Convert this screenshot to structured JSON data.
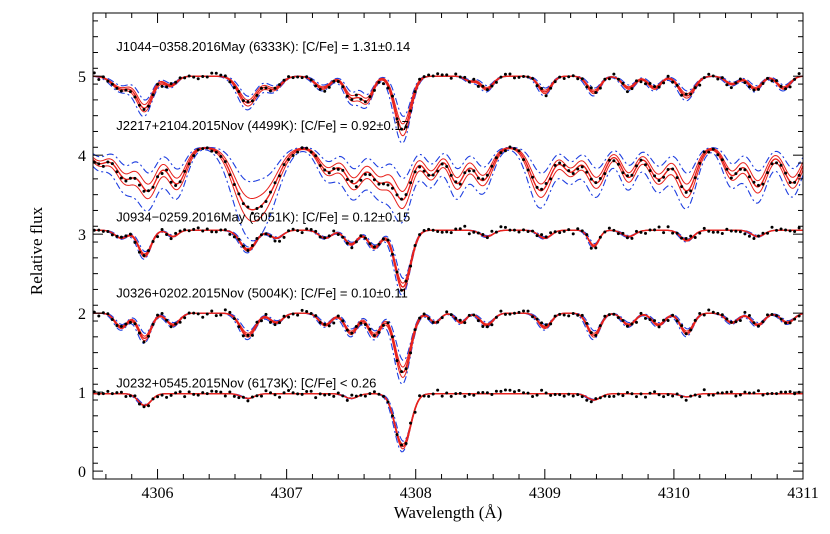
{
  "chart_data": {
    "type": "line",
    "xlabel": "Wavelength (Å)",
    "ylabel": "Relative flux",
    "xlim": [
      4305.5,
      4311.0
    ],
    "ylim": [
      -0.1,
      5.8
    ],
    "xticks": [
      4306,
      4307,
      4308,
      4309,
      4310,
      4311
    ],
    "xtick_labels": [
      "4306",
      "4307",
      "4308",
      "4309",
      "4310",
      "4311"
    ],
    "yticks": [
      0,
      1,
      2,
      3,
      4,
      5
    ],
    "ytick_labels": [
      "0",
      "1",
      "2",
      "3",
      "4",
      "5"
    ],
    "grid": false,
    "annotations": [
      {
        "text": "J1044−0358.2016May (6333K): [C/Fe] = 1.31±0.14",
        "x": 4305.68,
        "y": 5.32
      },
      {
        "text": "J2217+2104.2015Nov (4499K): [C/Fe] = 0.92±0.17",
        "x": 4305.68,
        "y": 4.32
      },
      {
        "text": "J0934−0259.2016May (6051K): [C/Fe] = 0.12±0.15",
        "x": 4305.68,
        "y": 3.16
      },
      {
        "text": "J0326+0202.2015Nov (5004K): [C/Fe] = 0.10±0.11",
        "x": 4305.68,
        "y": 2.2
      },
      {
        "text": "J0232+0545.2015Nov (6173K): [C/Fe] < 0.26",
        "x": 4305.68,
        "y": 1.06
      }
    ],
    "line_styles": {
      "observed": {
        "color": "#000000",
        "style": "dots"
      },
      "best_fit": {
        "color": "#e8221c",
        "style": "solid"
      },
      "fit_bounds": {
        "color": "#1f3fe0",
        "style": "dash-dot"
      }
    },
    "panels": [
      {
        "star": "J1044−0358.2016May",
        "offset": 5.0,
        "features": [
          {
            "x": 4305.72,
            "depth": 0.16,
            "w": 0.07
          },
          {
            "x": 4305.9,
            "depth": 0.4,
            "w": 0.06
          },
          {
            "x": 4306.1,
            "depth": 0.12,
            "w": 0.05
          },
          {
            "x": 4306.7,
            "depth": 0.34,
            "w": 0.07
          },
          {
            "x": 4306.9,
            "depth": 0.16,
            "w": 0.06
          },
          {
            "x": 4307.28,
            "depth": 0.15,
            "w": 0.06
          },
          {
            "x": 4307.5,
            "depth": 0.26,
            "w": 0.05
          },
          {
            "x": 4307.62,
            "depth": 0.3,
            "w": 0.05
          },
          {
            "x": 4307.9,
            "depth": 0.68,
            "w": 0.06
          },
          {
            "x": 4308.42,
            "depth": 0.06,
            "w": 0.04
          },
          {
            "x": 4308.55,
            "depth": 0.16,
            "w": 0.05
          },
          {
            "x": 4309.0,
            "depth": 0.2,
            "w": 0.05
          },
          {
            "x": 4309.38,
            "depth": 0.2,
            "w": 0.05
          },
          {
            "x": 4309.65,
            "depth": 0.15,
            "w": 0.05
          },
          {
            "x": 4309.85,
            "depth": 0.15,
            "w": 0.05
          },
          {
            "x": 4310.1,
            "depth": 0.25,
            "w": 0.06
          },
          {
            "x": 4310.45,
            "depth": 0.1,
            "w": 0.05
          },
          {
            "x": 4310.63,
            "depth": 0.16,
            "w": 0.05
          },
          {
            "x": 4310.85,
            "depth": 0.15,
            "w": 0.05
          }
        ],
        "bands": [
          0.05,
          0.1
        ]
      },
      {
        "star": "J2217+2104.2015Nov",
        "offset": 4.1,
        "features": [
          {
            "x": 4305.55,
            "depth": 0.2,
            "w": 0.07
          },
          {
            "x": 4305.75,
            "depth": 0.38,
            "w": 0.07
          },
          {
            "x": 4305.93,
            "depth": 0.54,
            "w": 0.07
          },
          {
            "x": 4306.15,
            "depth": 0.46,
            "w": 0.07
          },
          {
            "x": 4306.68,
            "depth": 0.62,
            "w": 0.1
          },
          {
            "x": 4306.85,
            "depth": 0.5,
            "w": 0.1
          },
          {
            "x": 4307.32,
            "depth": 0.3,
            "w": 0.07
          },
          {
            "x": 4307.52,
            "depth": 0.45,
            "w": 0.07
          },
          {
            "x": 4307.72,
            "depth": 0.42,
            "w": 0.07
          },
          {
            "x": 4307.9,
            "depth": 0.65,
            "w": 0.07
          },
          {
            "x": 4308.12,
            "depth": 0.35,
            "w": 0.06
          },
          {
            "x": 4308.32,
            "depth": 0.45,
            "w": 0.06
          },
          {
            "x": 4308.52,
            "depth": 0.42,
            "w": 0.07
          },
          {
            "x": 4308.97,
            "depth": 0.55,
            "w": 0.08
          },
          {
            "x": 4309.2,
            "depth": 0.3,
            "w": 0.06
          },
          {
            "x": 4309.4,
            "depth": 0.45,
            "w": 0.07
          },
          {
            "x": 4309.65,
            "depth": 0.38,
            "w": 0.06
          },
          {
            "x": 4309.88,
            "depth": 0.4,
            "w": 0.07
          },
          {
            "x": 4310.1,
            "depth": 0.55,
            "w": 0.07
          },
          {
            "x": 4310.45,
            "depth": 0.35,
            "w": 0.06
          },
          {
            "x": 4310.65,
            "depth": 0.5,
            "w": 0.07
          },
          {
            "x": 4310.92,
            "depth": 0.45,
            "w": 0.07
          }
        ],
        "bands": [
          0.07,
          0.16
        ]
      },
      {
        "star": "J0934−0259.2016May",
        "offset": 3.05,
        "features": [
          {
            "x": 4305.72,
            "depth": 0.1,
            "w": 0.05
          },
          {
            "x": 4305.9,
            "depth": 0.32,
            "w": 0.05
          },
          {
            "x": 4306.12,
            "depth": 0.08,
            "w": 0.04
          },
          {
            "x": 4306.7,
            "depth": 0.25,
            "w": 0.06
          },
          {
            "x": 4306.92,
            "depth": 0.1,
            "w": 0.05
          },
          {
            "x": 4307.3,
            "depth": 0.1,
            "w": 0.05
          },
          {
            "x": 4307.5,
            "depth": 0.18,
            "w": 0.05
          },
          {
            "x": 4307.68,
            "depth": 0.22,
            "w": 0.05
          },
          {
            "x": 4307.9,
            "depth": 0.72,
            "w": 0.06
          },
          {
            "x": 4308.55,
            "depth": 0.08,
            "w": 0.05
          },
          {
            "x": 4309.0,
            "depth": 0.1,
            "w": 0.05
          },
          {
            "x": 4309.38,
            "depth": 0.2,
            "w": 0.04
          },
          {
            "x": 4309.65,
            "depth": 0.08,
            "w": 0.05
          },
          {
            "x": 4310.1,
            "depth": 0.13,
            "w": 0.05
          },
          {
            "x": 4310.65,
            "depth": 0.08,
            "w": 0.05
          }
        ],
        "bands": [
          0.03,
          0.06
        ]
      },
      {
        "star": "J0326+0202.2015Nov",
        "offset": 2.0,
        "features": [
          {
            "x": 4305.72,
            "depth": 0.18,
            "w": 0.05
          },
          {
            "x": 4305.9,
            "depth": 0.32,
            "w": 0.05
          },
          {
            "x": 4306.12,
            "depth": 0.15,
            "w": 0.05
          },
          {
            "x": 4306.7,
            "depth": 0.28,
            "w": 0.06
          },
          {
            "x": 4306.92,
            "depth": 0.12,
            "w": 0.05
          },
          {
            "x": 4307.3,
            "depth": 0.15,
            "w": 0.05
          },
          {
            "x": 4307.5,
            "depth": 0.25,
            "w": 0.05
          },
          {
            "x": 4307.68,
            "depth": 0.28,
            "w": 0.05
          },
          {
            "x": 4307.9,
            "depth": 0.75,
            "w": 0.06
          },
          {
            "x": 4308.15,
            "depth": 0.12,
            "w": 0.04
          },
          {
            "x": 4308.35,
            "depth": 0.12,
            "w": 0.04
          },
          {
            "x": 4308.55,
            "depth": 0.15,
            "w": 0.05
          },
          {
            "x": 4309.0,
            "depth": 0.18,
            "w": 0.05
          },
          {
            "x": 4309.38,
            "depth": 0.28,
            "w": 0.05
          },
          {
            "x": 4309.65,
            "depth": 0.15,
            "w": 0.05
          },
          {
            "x": 4309.88,
            "depth": 0.15,
            "w": 0.05
          },
          {
            "x": 4310.1,
            "depth": 0.25,
            "w": 0.05
          },
          {
            "x": 4310.45,
            "depth": 0.12,
            "w": 0.05
          },
          {
            "x": 4310.65,
            "depth": 0.15,
            "w": 0.05
          },
          {
            "x": 4310.88,
            "depth": 0.12,
            "w": 0.05
          }
        ],
        "bands": [
          0.04,
          0.08
        ]
      },
      {
        "star": "J0232+0545.2015Nov",
        "offset": 0.98,
        "features": [
          {
            "x": 4305.9,
            "depth": 0.15,
            "w": 0.05
          },
          {
            "x": 4306.7,
            "depth": 0.06,
            "w": 0.05
          },
          {
            "x": 4307.5,
            "depth": 0.06,
            "w": 0.05
          },
          {
            "x": 4307.9,
            "depth": 0.67,
            "w": 0.06
          },
          {
            "x": 4309.38,
            "depth": 0.08,
            "w": 0.05
          },
          {
            "x": 4310.1,
            "depth": 0.04,
            "w": 0.05
          }
        ],
        "bands": [
          0.02,
          0.04
        ]
      }
    ]
  }
}
